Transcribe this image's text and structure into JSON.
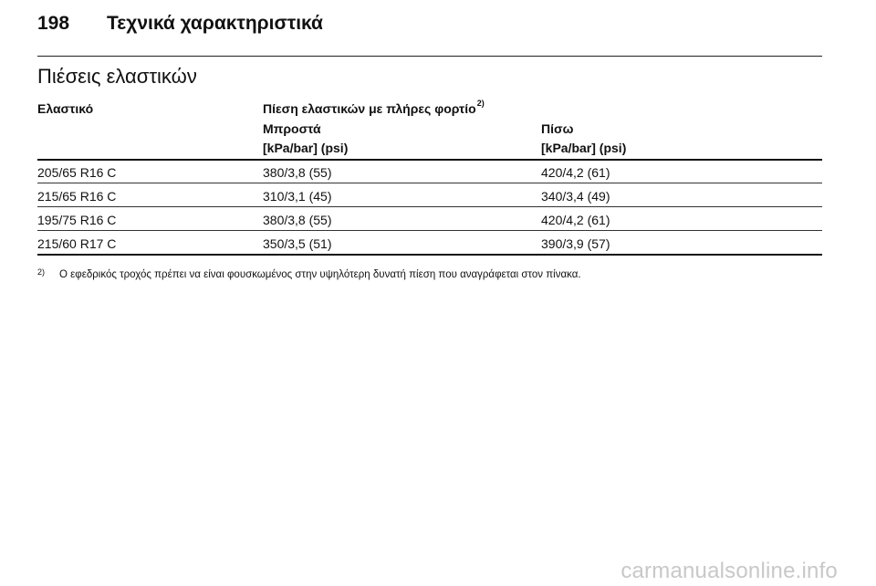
{
  "header": {
    "page_number": "198",
    "chapter_title": "Τεχνικά χαρακτηριστικά"
  },
  "section": {
    "title": "Πιέσεις ελαστικών"
  },
  "table": {
    "col_tyre": "Ελαστικό",
    "col_pressure": "Πίεση ελαστικών με πλήρες φορτίο",
    "col_pressure_note": "2)",
    "col_front": "Μπροστά",
    "col_front_unit": "[kPa/bar] (psi)",
    "col_rear": "Πίσω",
    "col_rear_unit": "[kPa/bar] (psi)",
    "rows": [
      {
        "tyre": "205/65 R16 C",
        "front": "380/3,8 (55)",
        "rear": "420/4,2 (61)"
      },
      {
        "tyre": "215/65 R16 C",
        "front": "310/3,1 (45)",
        "rear": "340/3,4 (49)"
      },
      {
        "tyre": "195/75 R16 C",
        "front": "380/3,8 (55)",
        "rear": "420/4,2 (61)"
      },
      {
        "tyre": "215/60 R17 C",
        "front": "350/3,5 (51)",
        "rear": "390/3,9 (57)"
      }
    ]
  },
  "footnote": {
    "mark": "2)",
    "text": "Ο εφεδρικός τροχός πρέπει να είναι φουσκωμένος στην υψηλότερη δυνατή πίεση που αναγράφεται στον πίνακα."
  },
  "watermark": "carmanualsonline.info"
}
